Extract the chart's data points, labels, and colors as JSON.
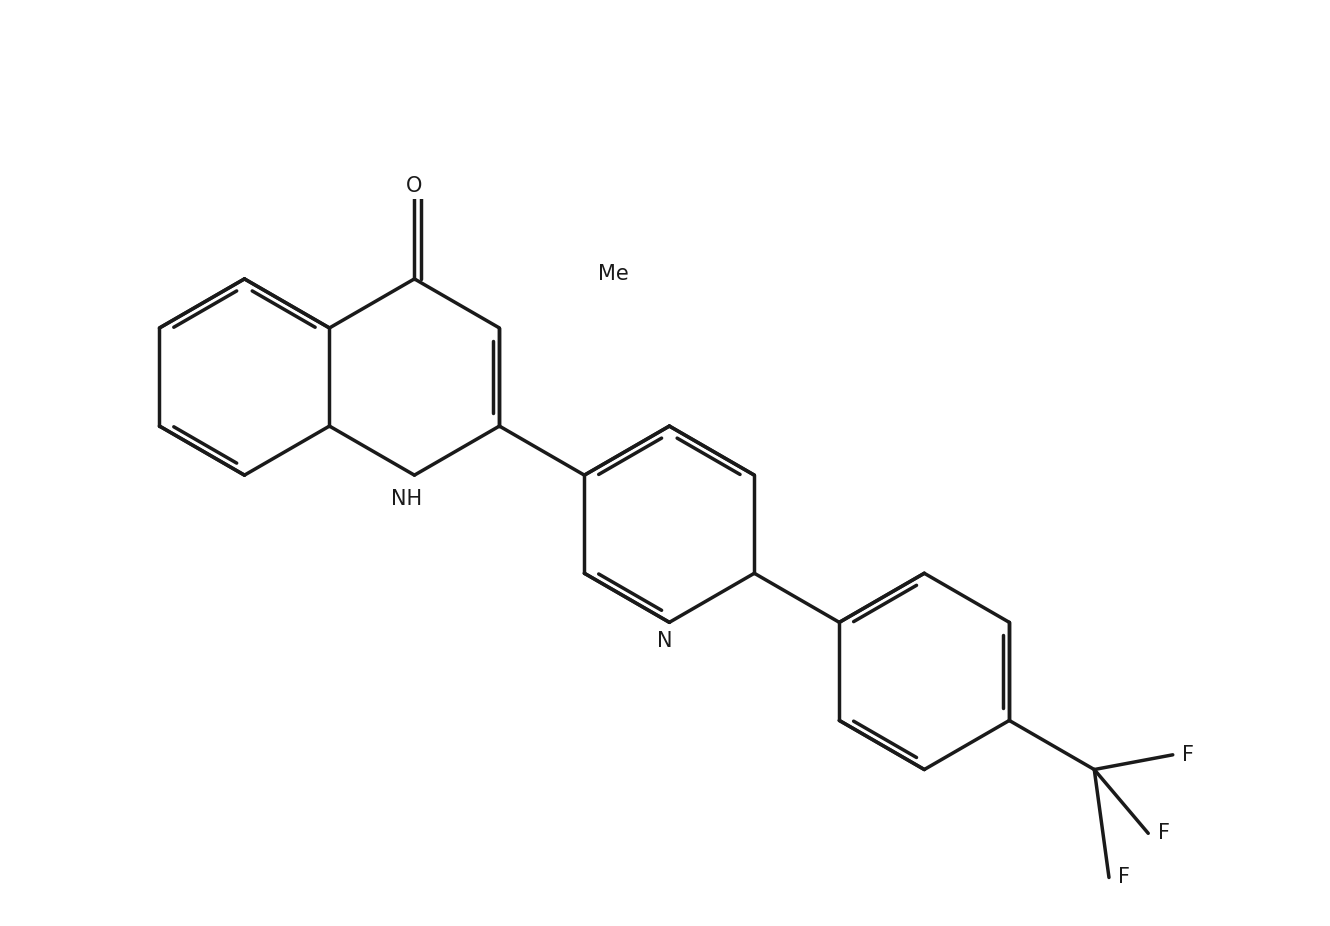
{
  "bg_color": "#ffffff",
  "line_color": "#1a1a1a",
  "line_width": 2.5,
  "dbo": 0.07,
  "figsize": [
    13.3,
    9.26
  ],
  "dpi": 100,
  "font_size": 15,
  "BL": 1.0,
  "label_NH": "NH",
  "label_N": "N",
  "label_O": "O",
  "label_Me": "Me",
  "label_F1": "F",
  "label_F2": "F",
  "label_F3": "F"
}
